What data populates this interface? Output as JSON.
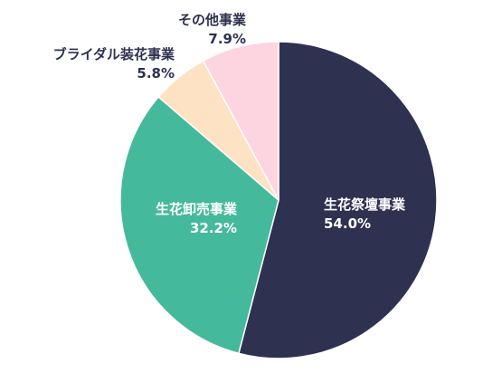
{
  "chart_data": {
    "type": "pie",
    "title": "",
    "start_angle_deg": 0,
    "direction": "clockwise",
    "slices": [
      {
        "name": "生花祭壇事業",
        "value": 54.0,
        "value_label": "54.0%",
        "color": "#2e3150",
        "label_color": "#ffffff"
      },
      {
        "name": "生花卸売事業",
        "value": 32.2,
        "value_label": "32.2%",
        "color": "#45b99b",
        "label_color": "#ffffff"
      },
      {
        "name": "ブライダル装花事業",
        "value": 5.8,
        "value_label": "5.8%",
        "color": "#fde3c4",
        "label_color": "#2e3150"
      },
      {
        "name": "その他事業",
        "value": 7.9,
        "value_label": "7.9%",
        "color": "#fdd5e0",
        "label_color": "#2e3150"
      }
    ]
  }
}
